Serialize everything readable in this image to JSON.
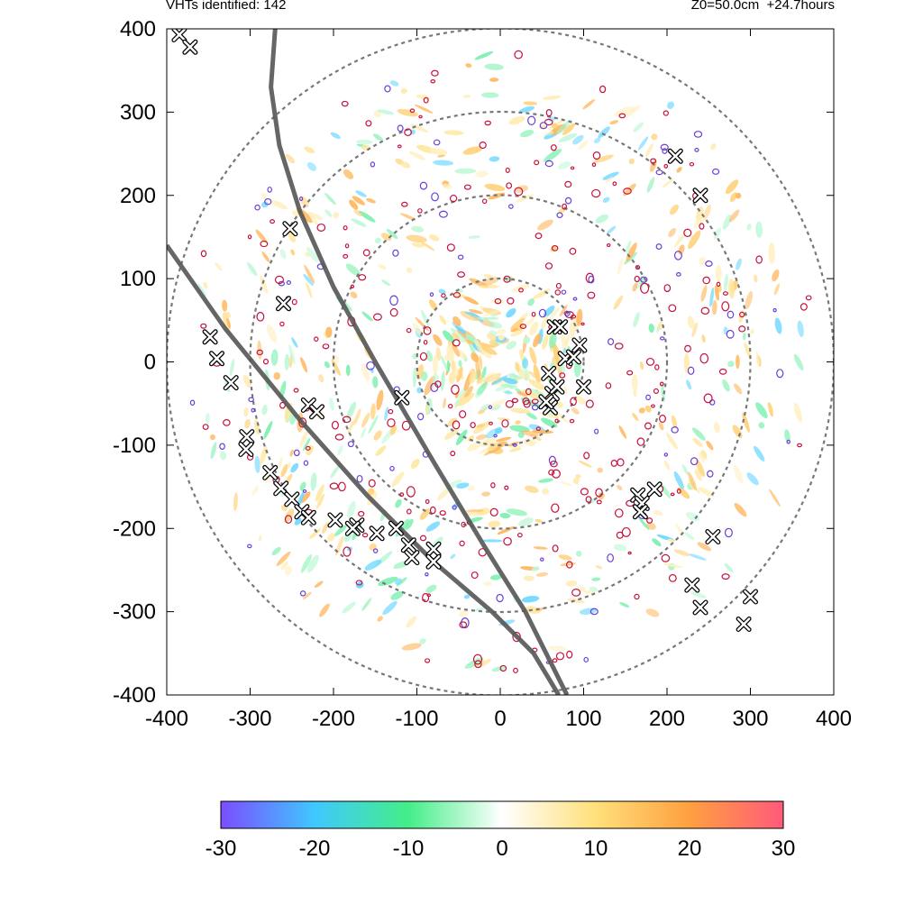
{
  "header": {
    "left_text": "VHTs identified: 142",
    "right_text": "Z0=50.0cm  +24.7hours"
  },
  "colors": {
    "contour_outer": "#c8103c",
    "contour_inner": "#6a3fd8",
    "track_line": "#555555",
    "range_ring": "#777777",
    "marker_fill": "#ffffff",
    "marker_stroke": "#000000",
    "colorbar_stops": [
      "#7b4dff",
      "#3fc8ff",
      "#44ee88",
      "#ffffff",
      "#ffe07a",
      "#ffa040",
      "#ff5a7a"
    ]
  },
  "chart_data": {
    "type": "scatter",
    "title": "",
    "xlabel": "",
    "ylabel": "",
    "xlim": [
      -400,
      400
    ],
    "ylim": [
      -400,
      400
    ],
    "x_ticks": [
      -400,
      -300,
      -200,
      -100,
      0,
      100,
      200,
      300,
      400
    ],
    "y_ticks": [
      -400,
      -300,
      -200,
      -100,
      0,
      100,
      200,
      300,
      400
    ],
    "grid": false,
    "range_ring_radii": [
      100,
      200,
      300,
      400
    ],
    "colorbar": {
      "min": -30,
      "max": 30,
      "ticks": [
        -30,
        -20,
        -10,
        0,
        10,
        20,
        30
      ]
    },
    "tracks": [
      {
        "points": [
          [
            -270,
            400
          ],
          [
            -275,
            330
          ],
          [
            -265,
            260
          ],
          [
            -240,
            180
          ],
          [
            -200,
            90
          ],
          [
            -150,
            0
          ],
          [
            -80,
            -120
          ],
          [
            -20,
            -220
          ],
          [
            30,
            -300
          ],
          [
            80,
            -400
          ]
        ]
      },
      {
        "points": [
          [
            -400,
            140
          ],
          [
            -330,
            40
          ],
          [
            -240,
            -70
          ],
          [
            -160,
            -160
          ],
          [
            -80,
            -240
          ],
          [
            -10,
            -300
          ],
          [
            40,
            -350
          ],
          [
            70,
            -400
          ]
        ]
      }
    ],
    "vht_markers": [
      [
        -385,
        393
      ],
      [
        -372,
        378
      ],
      [
        -252,
        160
      ],
      [
        -260,
        70
      ],
      [
        -348,
        30
      ],
      [
        -340,
        4
      ],
      [
        -323,
        -25
      ],
      [
        -304,
        -90
      ],
      [
        -305,
        -105
      ],
      [
        -276,
        -133
      ],
      [
        -263,
        -152
      ],
      [
        -250,
        -165
      ],
      [
        -238,
        -180
      ],
      [
        -230,
        -187
      ],
      [
        -198,
        -190
      ],
      [
        -172,
        -196
      ],
      [
        -177,
        -200
      ],
      [
        -148,
        -206
      ],
      [
        -125,
        -200
      ],
      [
        -110,
        -220
      ],
      [
        -106,
        -235
      ],
      [
        -80,
        -225
      ],
      [
        -80,
        -240
      ],
      [
        -118,
        -43
      ],
      [
        -230,
        -52
      ],
      [
        -220,
        -60
      ],
      [
        58,
        -14
      ],
      [
        62,
        -38
      ],
      [
        60,
        -55
      ],
      [
        55,
        -48
      ],
      [
        68,
        -30
      ],
      [
        100,
        -30
      ],
      [
        65,
        42
      ],
      [
        72,
        42
      ],
      [
        78,
        4
      ],
      [
        88,
        6
      ],
      [
        95,
        20
      ],
      [
        165,
        -160
      ],
      [
        170,
        -170
      ],
      [
        185,
        -153
      ],
      [
        168,
        -180
      ],
      [
        255,
        -210
      ],
      [
        230,
        -268
      ],
      [
        240,
        -295
      ],
      [
        300,
        -282
      ],
      [
        292,
        -315
      ],
      [
        210,
        247
      ],
      [
        240,
        200
      ]
    ],
    "vht_count": 142,
    "z0": "50.0cm",
    "time_offset": "+24.7hours"
  }
}
